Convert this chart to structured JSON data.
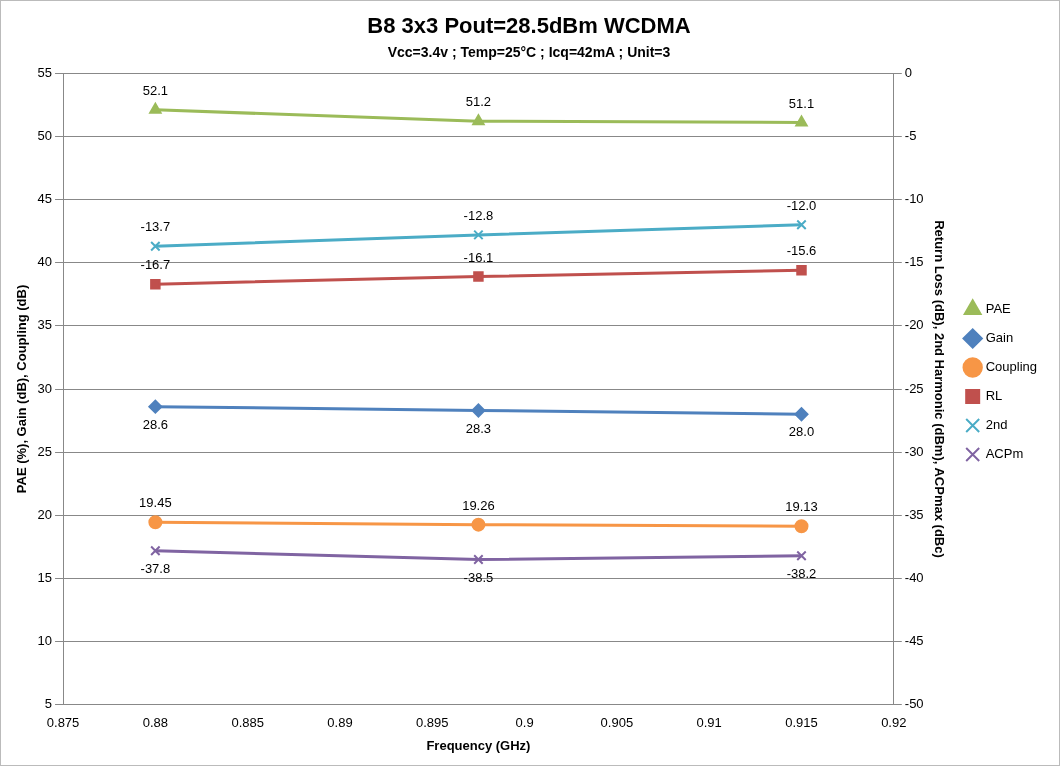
{
  "chart_data": {
    "type": "line",
    "title": "B8 3x3 Pout=28.5dBm WCDMA",
    "subtitle": "Vcc=3.4v ; Temp=25°C ; Icq=42mA ; Unit=3",
    "xlabel": "Frequency (GHz)",
    "ylabel": "PAE (%), Gain (dB), Coupling (dB)",
    "y2label": "Return Loss (dB), 2nd Harmonic (dBm), ACPmax (dBc)",
    "x": [
      0.88,
      0.8975,
      0.915
    ],
    "xlim": [
      0.875,
      0.92
    ],
    "xticks": [
      0.875,
      0.88,
      0.885,
      0.89,
      0.895,
      0.9,
      0.905,
      0.91,
      0.915,
      0.92
    ],
    "ylim": [
      5,
      55
    ],
    "yticks": [
      5,
      10,
      15,
      20,
      25,
      30,
      35,
      40,
      45,
      50,
      55
    ],
    "y2lim": [
      -50,
      0
    ],
    "y2ticks": [
      -50,
      -45,
      -40,
      -35,
      -30,
      -25,
      -20,
      -15,
      -10,
      -5,
      0
    ],
    "grid": "y",
    "legend": "right",
    "line_style": "solid",
    "series": [
      {
        "name": "PAE",
        "color": "#9bbb59",
        "marker": "triangle",
        "values": [
          52.1,
          51.2,
          51.1
        ],
        "value_labels": [
          "52.1",
          "51.2",
          "51.1"
        ]
      },
      {
        "name": "Gain",
        "color": "#4f81bd",
        "marker": "diamond",
        "values": [
          28.6,
          28.3,
          28.0
        ],
        "value_labels": [
          "28.6",
          "28.3",
          "28.0"
        ]
      },
      {
        "name": "Coupling",
        "color": "#f79646",
        "marker": "circle",
        "values": [
          19.45,
          19.26,
          19.13
        ],
        "value_labels": [
          "19.45",
          "19.26",
          "19.13"
        ]
      },
      {
        "name": "RL",
        "color": "#c0504d",
        "marker": "square",
        "axis": "y2",
        "values": [
          -16.7,
          -16.1,
          -15.6
        ],
        "value_labels": [
          "-16.7",
          "-16.1",
          "-15.6"
        ]
      },
      {
        "name": "2nd",
        "color": "#4bacc6",
        "marker": "cross",
        "axis": "y2",
        "values": [
          -13.7,
          -12.8,
          -12.0
        ],
        "value_labels": [
          "-13.7",
          "-12.8",
          "-12.0"
        ]
      },
      {
        "name": "ACPm",
        "color": "#8064a2",
        "marker": "cross",
        "axis": "y2",
        "values": [
          -37.8,
          -38.5,
          -38.2
        ],
        "value_labels": [
          "-37.8",
          "-38.5",
          "-38.2"
        ]
      }
    ]
  }
}
